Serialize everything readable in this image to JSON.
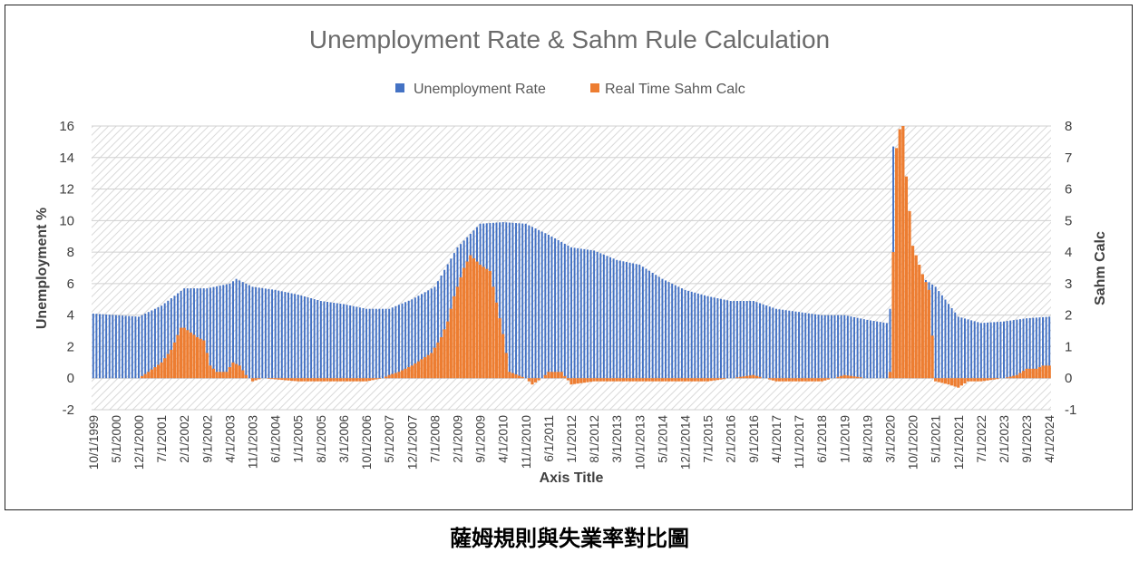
{
  "caption": "薩姆規則與失業率對比圖",
  "chart_data": {
    "type": "bar",
    "title": "Unemployment Rate & Sahm Rule Calculation",
    "xlabel": "Axis Title",
    "ylabel": "Unemployment %",
    "y2label": "Sahm Calc",
    "ylim": [
      -2,
      16
    ],
    "y2lim": [
      -1,
      8
    ],
    "yticks": [
      -2,
      0,
      2,
      4,
      6,
      8,
      10,
      12,
      14,
      16
    ],
    "y2ticks": [
      -1,
      0,
      1,
      2,
      3,
      4,
      5,
      6,
      7,
      8
    ],
    "legend_position": "top-center",
    "grid": true,
    "x_start": "10/1/1999",
    "x_end": "4/1/2024",
    "x_frequency": "monthly",
    "x_tick_labels": [
      "10/1/1999",
      "5/1/2000",
      "12/1/2000",
      "7/1/2001",
      "2/1/2002",
      "9/1/2002",
      "4/1/2003",
      "11/1/2003",
      "6/1/2004",
      "1/1/2005",
      "8/1/2005",
      "3/1/2006",
      "10/1/2006",
      "5/1/2007",
      "12/1/2007",
      "7/1/2008",
      "2/1/2009",
      "9/1/2009",
      "4/1/2010",
      "11/1/2010",
      "6/1/2011",
      "1/1/2012",
      "8/1/2012",
      "3/1/2013",
      "10/1/2013",
      "5/1/2014",
      "12/1/2014",
      "7/1/2015",
      "2/1/2016",
      "9/1/2016",
      "4/1/2017",
      "11/1/2017",
      "6/1/2018",
      "1/1/2019",
      "8/1/2019",
      "3/1/2020",
      "10/1/2020",
      "5/1/2021",
      "12/1/2021",
      "7/1/2022",
      "2/1/2023",
      "9/1/2023",
      "4/1/2024"
    ],
    "series": [
      {
        "name": "Unemployment Rate",
        "axis": "left",
        "color": "#4472c4",
        "anchors": [
          [
            "10/1/1999",
            4.1
          ],
          [
            "5/1/2000",
            4.0
          ],
          [
            "12/1/2000",
            3.9
          ],
          [
            "7/1/2001",
            4.6
          ],
          [
            "2/1/2002",
            5.7
          ],
          [
            "9/1/2002",
            5.7
          ],
          [
            "4/1/2003",
            6.0
          ],
          [
            "6/1/2003",
            6.3
          ],
          [
            "11/1/2003",
            5.8
          ],
          [
            "6/1/2004",
            5.6
          ],
          [
            "1/1/2005",
            5.3
          ],
          [
            "8/1/2005",
            4.9
          ],
          [
            "3/1/2006",
            4.7
          ],
          [
            "10/1/2006",
            4.4
          ],
          [
            "5/1/2007",
            4.4
          ],
          [
            "12/1/2007",
            5.0
          ],
          [
            "7/1/2008",
            5.8
          ],
          [
            "2/1/2009",
            8.3
          ],
          [
            "9/1/2009",
            9.8
          ],
          [
            "4/1/2010",
            9.9
          ],
          [
            "11/1/2010",
            9.8
          ],
          [
            "6/1/2011",
            9.1
          ],
          [
            "1/1/2012",
            8.3
          ],
          [
            "8/1/2012",
            8.1
          ],
          [
            "3/1/2013",
            7.5
          ],
          [
            "10/1/2013",
            7.2
          ],
          [
            "5/1/2014",
            6.3
          ],
          [
            "12/1/2014",
            5.6
          ],
          [
            "7/1/2015",
            5.2
          ],
          [
            "2/1/2016",
            4.9
          ],
          [
            "9/1/2016",
            4.9
          ],
          [
            "4/1/2017",
            4.4
          ],
          [
            "11/1/2017",
            4.2
          ],
          [
            "6/1/2018",
            4.0
          ],
          [
            "1/1/2019",
            4.0
          ],
          [
            "8/1/2019",
            3.7
          ],
          [
            "2/1/2020",
            3.5
          ],
          [
            "3/1/2020",
            4.4
          ],
          [
            "4/1/2020",
            14.7
          ],
          [
            "5/1/2020",
            13.2
          ],
          [
            "6/1/2020",
            11.1
          ],
          [
            "7/1/2020",
            10.2
          ],
          [
            "8/1/2020",
            8.4
          ],
          [
            "9/1/2020",
            7.8
          ],
          [
            "10/1/2020",
            6.8
          ],
          [
            "5/1/2021",
            5.8
          ],
          [
            "12/1/2021",
            3.9
          ],
          [
            "7/1/2022",
            3.5
          ],
          [
            "2/1/2023",
            3.6
          ],
          [
            "9/1/2023",
            3.8
          ],
          [
            "4/1/2024",
            3.9
          ],
          [
            "5/1/2024",
            4.0
          ]
        ]
      },
      {
        "name": "Real Time Sahm Calc",
        "axis": "right",
        "color": "#ed7d31",
        "anchors": [
          [
            "10/1/1999",
            0.0
          ],
          [
            "12/1/2000",
            0.0
          ],
          [
            "3/1/2001",
            0.2
          ],
          [
            "7/1/2001",
            0.5
          ],
          [
            "10/1/2001",
            0.9
          ],
          [
            "1/1/2002",
            1.6
          ],
          [
            "2/1/2002",
            1.6
          ],
          [
            "6/1/2002",
            1.3
          ],
          [
            "8/1/2002",
            1.2
          ],
          [
            "10/1/2002",
            0.4
          ],
          [
            "12/1/2002",
            0.2
          ],
          [
            "3/1/2003",
            0.2
          ],
          [
            "5/1/2003",
            0.5
          ],
          [
            "7/1/2003",
            0.4
          ],
          [
            "9/1/2003",
            0.1
          ],
          [
            "11/1/2003",
            -0.1
          ],
          [
            "2/1/2004",
            0.0
          ],
          [
            "1/1/2005",
            -0.1
          ],
          [
            "3/1/2006",
            -0.1
          ],
          [
            "10/1/2006",
            -0.1
          ],
          [
            "3/1/2007",
            0.0
          ],
          [
            "5/1/2007",
            0.1
          ],
          [
            "8/1/2007",
            0.2
          ],
          [
            "12/1/2007",
            0.4
          ],
          [
            "3/1/2008",
            0.6
          ],
          [
            "6/1/2008",
            0.8
          ],
          [
            "9/1/2008",
            1.3
          ],
          [
            "11/1/2008",
            1.8
          ],
          [
            "1/1/2009",
            2.6
          ],
          [
            "4/1/2009",
            3.5
          ],
          [
            "6/1/2009",
            3.9
          ],
          [
            "9/1/2009",
            3.6
          ],
          [
            "12/1/2009",
            3.4
          ],
          [
            "4/1/2010",
            1.4
          ],
          [
            "6/1/2010",
            0.2
          ],
          [
            "11/1/2010",
            0.0
          ],
          [
            "1/1/2011",
            -0.2
          ],
          [
            "4/1/2011",
            0.0
          ],
          [
            "6/1/2011",
            0.2
          ],
          [
            "10/1/2011",
            0.2
          ],
          [
            "1/1/2012",
            -0.2
          ],
          [
            "8/1/2012",
            -0.1
          ],
          [
            "10/1/2013",
            -0.1
          ],
          [
            "5/1/2014",
            -0.1
          ],
          [
            "12/1/2014",
            -0.1
          ],
          [
            "7/1/2015",
            -0.1
          ],
          [
            "2/1/2016",
            0.0
          ],
          [
            "9/1/2016",
            0.1
          ],
          [
            "4/1/2017",
            -0.1
          ],
          [
            "11/1/2017",
            -0.1
          ],
          [
            "6/1/2018",
            -0.1
          ],
          [
            "1/1/2019",
            0.1
          ],
          [
            "8/1/2019",
            0.0
          ],
          [
            "2/1/2020",
            0.0
          ],
          [
            "3/1/2020",
            0.2
          ],
          [
            "4/1/2020",
            4.0
          ],
          [
            "5/1/2020",
            7.3
          ],
          [
            "6/1/2020",
            7.9
          ],
          [
            "7/1/2020",
            8.0
          ],
          [
            "8/1/2020",
            6.4
          ],
          [
            "9/1/2020",
            5.3
          ],
          [
            "10/1/2020",
            4.2
          ],
          [
            "1/1/2021",
            3.3
          ],
          [
            "3/1/2021",
            2.8
          ],
          [
            "5/1/2021",
            -0.1
          ],
          [
            "9/1/2021",
            -0.2
          ],
          [
            "12/1/2021",
            -0.3
          ],
          [
            "3/1/2022",
            -0.1
          ],
          [
            "7/1/2022",
            -0.1
          ],
          [
            "2/1/2023",
            0.0
          ],
          [
            "6/1/2023",
            0.1
          ],
          [
            "9/1/2023",
            0.3
          ],
          [
            "12/1/2023",
            0.3
          ],
          [
            "2/1/2024",
            0.4
          ],
          [
            "5/1/2024",
            0.4
          ]
        ]
      }
    ]
  }
}
